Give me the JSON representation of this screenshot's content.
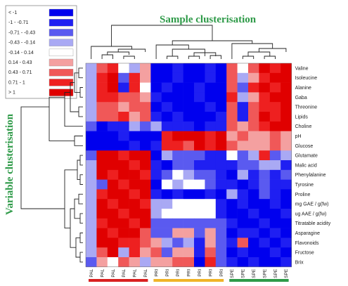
{
  "chart_data": {
    "type": "heatmap",
    "title": "Sample clusterisation",
    "ylabel": "Variable clusterisation",
    "legend": [
      {
        "label": "< -1",
        "color": "#0000ee"
      },
      {
        "label": "-1 - -0.71",
        "color": "#1f1ff2"
      },
      {
        "label": "-0.71 - -0.43",
        "color": "#5a5af0"
      },
      {
        "label": "-0.43 - -0.14",
        "color": "#a9a9f4"
      },
      {
        "label": "-0.14 - 0.14",
        "color": "#ffffff"
      },
      {
        "label": "0.14 - 0.43",
        "color": "#f4a0a0"
      },
      {
        "label": "0.43 - 0.71",
        "color": "#f05858"
      },
      {
        "label": "0.71 - 1",
        "color": "#ee2020"
      },
      {
        "label": "> 1",
        "color": "#e00000"
      }
    ],
    "rows": [
      "Valine",
      "Isoleucine",
      "Alanine",
      "Gaba",
      "Threonine",
      "Lipids",
      "Choline",
      "pH",
      "Glucose",
      "Glutamate",
      "Malic acid",
      "Phenylalanine",
      "Tyrosine",
      "Proline",
      "mg GAE / g(fw)",
      "ug AAE / g(fw)",
      "Titratable acidity",
      "Asparagine",
      "Flavonoids",
      "Fructose",
      "Brix"
    ],
    "columns": [
      "PAL",
      "PAL",
      "PAL",
      "PAL",
      "PAL",
      "PAL",
      "PRI",
      "PRI",
      "PRI",
      "PRI",
      "PRI",
      "PRI",
      "PRI",
      "SPE",
      "SPE",
      "SPE",
      "SPE",
      "SPE",
      "SPE"
    ],
    "group_bars": [
      {
        "group": "PAL",
        "color": "#d92020"
      },
      {
        "group": "PRI",
        "color": "#f0b428"
      },
      {
        "group": "SPE",
        "color": "#2e9a48"
      }
    ],
    "values": [
      [
        -0.3,
        0.5,
        0.9,
        0.1,
        -0.2,
        0.4,
        -1.2,
        -1.1,
        -1.0,
        -1.2,
        -1.1,
        -1.0,
        -1.2,
        0.6,
        0.1,
        0.5,
        1.1,
        0.9,
        1.2
      ],
      [
        -0.3,
        0.9,
        1.1,
        -0.6,
        0.8,
        0.3,
        -1.2,
        -1.1,
        -1.0,
        -1.1,
        -1.2,
        -1.0,
        -1.1,
        0.7,
        -0.3,
        0.4,
        1.0,
        1.1,
        1.2
      ],
      [
        -0.2,
        1.0,
        1.2,
        -0.9,
        1.0,
        0.0,
        -1.1,
        -1.0,
        -1.2,
        -1.1,
        -1.0,
        -1.2,
        -1.1,
        0.5,
        -0.5,
        0.9,
        1.2,
        1.0,
        1.1
      ],
      [
        -0.4,
        0.8,
        1.0,
        0.6,
        0.5,
        0.4,
        -1.0,
        -1.2,
        -1.1,
        -1.2,
        -1.0,
        -1.1,
        -1.2,
        0.8,
        -0.3,
        0.3,
        0.9,
        1.2,
        1.1
      ],
      [
        -0.3,
        0.6,
        0.7,
        0.4,
        0.5,
        0.6,
        -1.1,
        -1.0,
        -1.2,
        -1.1,
        -1.2,
        -1.0,
        -1.1,
        0.5,
        -0.8,
        0.6,
        1.0,
        0.9,
        1.2
      ],
      [
        -0.2,
        0.5,
        0.6,
        0.8,
        0.4,
        0.7,
        -1.0,
        -1.1,
        -1.0,
        -1.2,
        -1.1,
        -1.2,
        -1.0,
        0.6,
        -0.9,
        0.7,
        1.1,
        1.0,
        1.1
      ],
      [
        -0.6,
        -1.1,
        -1.0,
        -0.9,
        -0.3,
        -0.6,
        -0.4,
        -0.9,
        -1.0,
        -0.9,
        -1.1,
        -1.0,
        -0.9,
        0.5,
        0.3,
        0.6,
        1.0,
        1.1,
        1.2
      ],
      [
        -1.2,
        -1.1,
        -1.2,
        -1.0,
        -1.2,
        -1.1,
        -1.1,
        1.0,
        1.1,
        1.2,
        1.1,
        1.0,
        1.2,
        0.4,
        0.5,
        0.3,
        0.4,
        0.5,
        0.3
      ],
      [
        -1.1,
        -1.2,
        -1.1,
        -1.2,
        -1.0,
        -1.1,
        -0.9,
        0.9,
        1.0,
        0.6,
        1.1,
        0.8,
        1.2,
        0.5,
        0.3,
        0.4,
        0.3,
        0.5,
        0.4
      ],
      [
        -0.5,
        1.1,
        1.2,
        1.0,
        1.1,
        1.2,
        -1.1,
        -0.3,
        -0.6,
        -0.5,
        -0.7,
        -0.9,
        -1.0,
        0.0,
        -0.5,
        -0.4,
        0.9,
        -0.6,
        -0.3
      ],
      [
        -0.4,
        1.2,
        1.1,
        1.2,
        1.0,
        1.1,
        -0.8,
        -1.1,
        -0.7,
        -0.6,
        -0.9,
        -0.8,
        -1.0,
        -1.0,
        -0.6,
        -0.5,
        -0.4,
        -0.3,
        -1.0
      ],
      [
        -0.3,
        1.1,
        1.0,
        1.1,
        1.2,
        1.0,
        -1.0,
        -0.6,
        0.0,
        -0.3,
        -0.5,
        -0.6,
        -0.9,
        -1.1,
        -0.3,
        -1.0,
        -0.5,
        -0.9,
        -0.6
      ],
      [
        -0.3,
        -0.7,
        1.1,
        1.0,
        1.2,
        1.1,
        -1.1,
        -0.1,
        -0.4,
        0.0,
        0.0,
        -0.5,
        -1.0,
        -1.0,
        -1.1,
        -0.8,
        -0.6,
        -0.9,
        -1.0
      ],
      [
        -0.3,
        1.0,
        1.2,
        1.1,
        1.0,
        1.2,
        -1.0,
        -1.1,
        -1.0,
        -1.2,
        -1.1,
        -1.0,
        -1.2,
        -0.2,
        -1.0,
        -1.1,
        -0.6,
        -1.0,
        -1.1
      ],
      [
        -0.3,
        1.1,
        1.0,
        1.2,
        1.1,
        1.0,
        -0.4,
        -0.3,
        0.0,
        0.0,
        0.0,
        0.0,
        -1.0,
        -1.1,
        -1.0,
        -1.2,
        -1.1,
        -1.0,
        -1.2
      ],
      [
        -0.4,
        1.2,
        1.1,
        1.0,
        1.2,
        1.1,
        -0.3,
        0.0,
        0.0,
        0.0,
        0.0,
        0.0,
        -1.0,
        -1.2,
        -1.1,
        -1.0,
        -1.2,
        -1.1,
        -1.0
      ],
      [
        -0.4,
        1.0,
        1.2,
        1.1,
        1.0,
        1.2,
        -0.6,
        -0.7,
        -0.6,
        -0.7,
        -0.6,
        -0.7,
        -0.7,
        -1.0,
        -1.2,
        -1.1,
        -1.0,
        -1.2,
        -1.1
      ],
      [
        -0.4,
        1.1,
        1.0,
        1.2,
        1.1,
        0.6,
        -0.5,
        -0.6,
        0.4,
        0.4,
        -0.6,
        0.3,
        -0.5,
        -1.1,
        -0.8,
        -1.0,
        -1.1,
        -1.0,
        -1.2
      ],
      [
        -0.4,
        1.2,
        1.1,
        1.0,
        0.9,
        0.5,
        0.3,
        -0.3,
        -0.6,
        -0.2,
        -1.0,
        0.4,
        -0.6,
        -1.0,
        0.7,
        -1.1,
        -1.0,
        -1.2,
        -1.0
      ],
      [
        -0.2,
        0.6,
        1.1,
        -0.3,
        0.9,
        0.3,
        0.5,
        -0.5,
        0.3,
        0.4,
        -1.0,
        0.5,
        -0.5,
        -1.1,
        -1.0,
        -1.2,
        -1.1,
        -1.0,
        -1.1
      ],
      [
        -0.5,
        0.4,
        0.0,
        0.5,
        0.3,
        -0.2,
        0.4,
        0.3,
        0.5,
        0.6,
        -1.1,
        0.8,
        -0.6,
        -1.0,
        -1.1,
        -1.0,
        -1.2,
        -1.1,
        -1.0
      ]
    ]
  }
}
